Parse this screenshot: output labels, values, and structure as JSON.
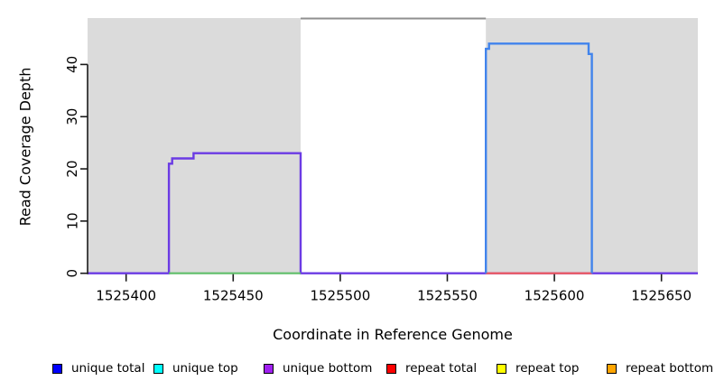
{
  "figure": {
    "xlabel": "Coordinate in Reference Genome",
    "ylabel": "Read Coverage Depth"
  },
  "chart_data": {
    "type": "line",
    "subtype": "step-coverage-plot",
    "title": "",
    "xlabel": "Coordinate in Reference Genome",
    "ylabel": "Read Coverage Depth",
    "xlim": [
      1525382,
      1525667
    ],
    "ylim": [
      0,
      48.8
    ],
    "x_ticks": [
      1525400,
      1525450,
      1525500,
      1525550,
      1525600,
      1525650
    ],
    "y_ticks": [
      0,
      10,
      20,
      30,
      40
    ],
    "grid": false,
    "background_regions": [
      {
        "name": "left-shaded-block",
        "x0": 1525382,
        "x1": 1525481.5,
        "color": "#DBDBDB"
      },
      {
        "name": "center-unshaded",
        "x0": 1525481.5,
        "x1": 1525568,
        "color": "#FFFFFF"
      },
      {
        "name": "right-shaded-block",
        "x0": 1525568,
        "x1": 1525667,
        "color": "#DBDBDB"
      }
    ],
    "series": [
      {
        "name": "unique-bottom-and-total-left-block",
        "color": "#6B3BE4",
        "width": 2.4,
        "points": [
          [
            1525382,
            0
          ],
          [
            1525420,
            0
          ],
          [
            1525420,
            21
          ],
          [
            1525421.5,
            21
          ],
          [
            1525421.5,
            22
          ],
          [
            1525431.5,
            22
          ],
          [
            1525431.5,
            23
          ],
          [
            1525481.5,
            23
          ],
          [
            1525481.5,
            0
          ],
          [
            1525667,
            0
          ]
        ]
      },
      {
        "name": "baseline-under-left-block",
        "color": "#5FBE69",
        "width": 2.2,
        "points": [
          [
            1525420,
            0
          ],
          [
            1525481.5,
            0
          ]
        ]
      },
      {
        "name": "repeat-total-baseline-under-right-block",
        "color": "#F25B5B",
        "width": 2.2,
        "points": [
          [
            1525568,
            0
          ],
          [
            1525617.5,
            0
          ]
        ]
      },
      {
        "name": "unique-total-and-top-right-block",
        "color": "#4184EC",
        "width": 2.4,
        "points": [
          [
            1525568,
            0
          ],
          [
            1525568,
            43
          ],
          [
            1525569.5,
            43
          ],
          [
            1525569.5,
            44
          ],
          [
            1525616,
            44
          ],
          [
            1525616,
            42
          ],
          [
            1525617.5,
            42
          ],
          [
            1525617.5,
            0
          ]
        ]
      },
      {
        "name": "clipped-offscale-coverage-center",
        "color": "#8F8F8F",
        "width": 2,
        "points": [
          [
            1525481.5,
            48.8
          ],
          [
            1525568,
            48.8
          ]
        ]
      }
    ],
    "legend": {
      "position": "bottom",
      "items": [
        {
          "label": "unique total",
          "color": "#0000FF"
        },
        {
          "label": "unique top",
          "color": "#00FFFF"
        },
        {
          "label": "unique bottom",
          "color": "#A020F0"
        },
        {
          "label": "repeat total",
          "color": "#FF0000"
        },
        {
          "label": "repeat top",
          "color": "#FFFF00"
        },
        {
          "label": "repeat bottom",
          "color": "#FFA500"
        }
      ]
    }
  }
}
